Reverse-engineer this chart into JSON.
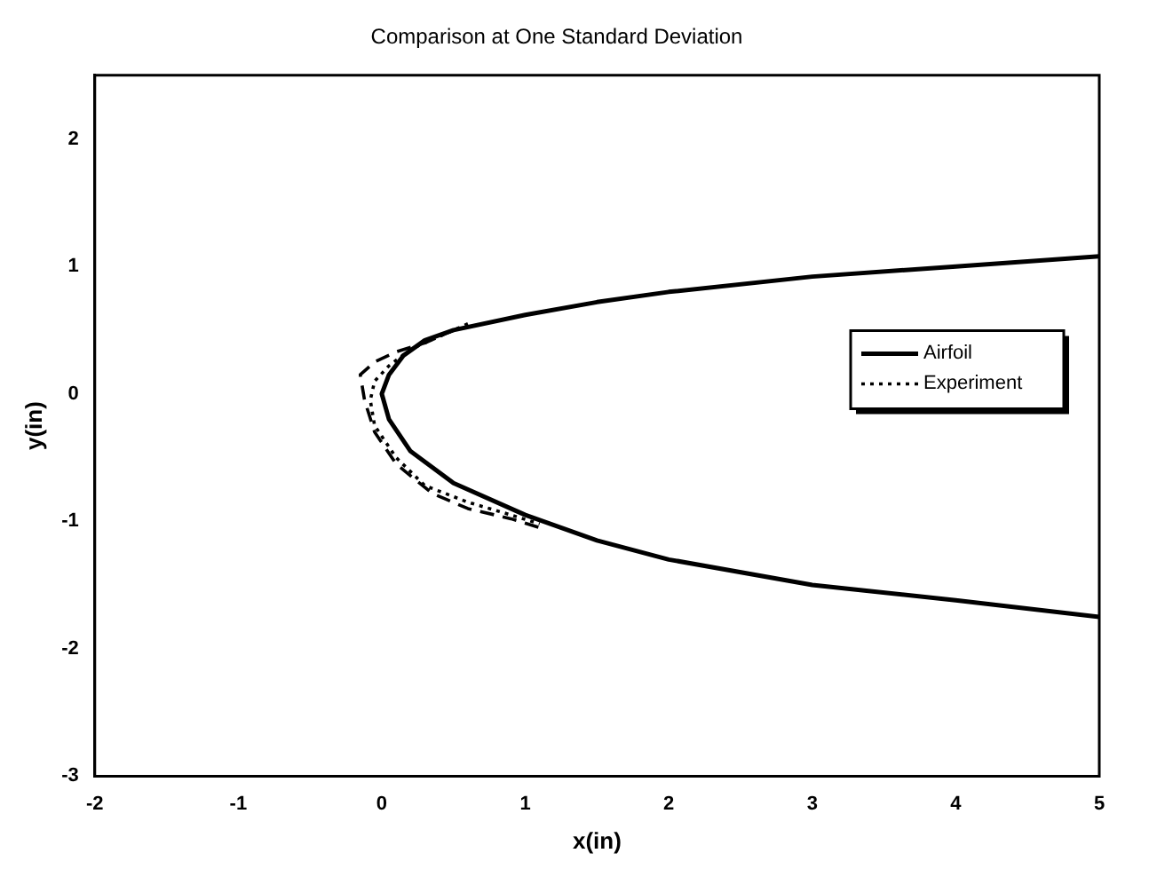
{
  "chart_data": {
    "type": "line",
    "title": "Comparison at One Standard Deviation",
    "xlabel": "x(in)",
    "ylabel": "y(in)",
    "xlim": [
      -2,
      5
    ],
    "xticks": [
      -2,
      -1,
      0,
      1,
      2,
      3,
      4,
      5
    ],
    "ylim": [
      -3,
      2.5
    ],
    "yticks": [
      -3,
      -2,
      -1,
      0,
      1,
      2
    ],
    "grid": false,
    "legend": "right",
    "marker": "none",
    "series": [
      {
        "name": "Airfoil",
        "color": "#000000",
        "line_style": "solid",
        "x": [
          5,
          4,
          3,
          2,
          1.5,
          1,
          0.5,
          0.3,
          0.15,
          0.05,
          0,
          0.05,
          0.2,
          0.5,
          1,
          1.5,
          2,
          3,
          4,
          5
        ],
        "values": [
          1.08,
          1.0,
          0.92,
          0.8,
          0.72,
          0.62,
          0.5,
          0.42,
          0.3,
          0.15,
          0,
          -0.2,
          -0.45,
          -0.7,
          -0.95,
          -1.15,
          -1.3,
          -1.5,
          -1.62,
          -1.75
        ]
      },
      {
        "name": "Experiment",
        "color": "#000000",
        "line_style": "dotted",
        "x": [
          0.6,
          0.4,
          0.2,
          0.05,
          -0.05,
          -0.08,
          -0.05,
          0.1,
          0.3,
          0.6,
          0.9,
          1.1
        ],
        "values": [
          0.55,
          0.45,
          0.35,
          0.22,
          0.1,
          -0.05,
          -0.25,
          -0.5,
          -0.72,
          -0.85,
          -0.95,
          -1.02
        ]
      },
      {
        "color": "#000000",
        "line_style": "dashed",
        "x": [
          0.5,
          0.3,
          0.1,
          -0.05,
          -0.15,
          -0.12,
          -0.05,
          0.1,
          0.35,
          0.6,
          0.9,
          1.1
        ],
        "values": [
          0.5,
          0.4,
          0.33,
          0.25,
          0.15,
          -0.05,
          -0.3,
          -0.55,
          -0.78,
          -0.9,
          -0.98,
          -1.05
        ]
      }
    ]
  }
}
